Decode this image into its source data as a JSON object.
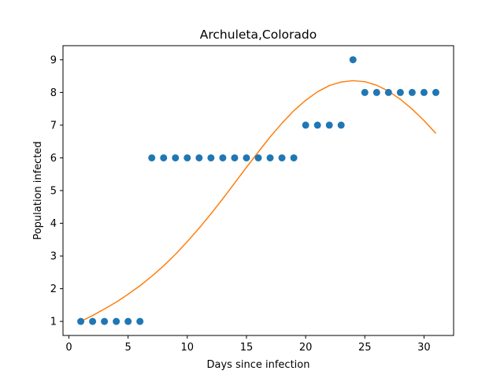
{
  "chart_data": {
    "type": "scatter",
    "title": "Archuleta,Colorado",
    "xlabel": "Days since infection",
    "ylabel": "Population infected",
    "xlim": [
      -0.5,
      32.5
    ],
    "ylim": [
      0.57,
      9.43
    ],
    "xticks": [
      0,
      5,
      10,
      15,
      20,
      25,
      30
    ],
    "yticks": [
      1,
      2,
      3,
      4,
      5,
      6,
      7,
      8,
      9
    ],
    "grid": false,
    "series": [
      {
        "kind": "scatter",
        "color": "#1f77b4",
        "x": [
          1,
          2,
          3,
          4,
          5,
          6,
          7,
          8,
          9,
          10,
          11,
          12,
          13,
          14,
          15,
          16,
          17,
          18,
          19,
          20,
          21,
          22,
          23,
          24,
          25,
          26,
          27,
          28,
          29,
          30,
          31
        ],
        "y": [
          1,
          1,
          1,
          1,
          1,
          1,
          6,
          6,
          6,
          6,
          6,
          6,
          6,
          6,
          6,
          6,
          6,
          6,
          6,
          7,
          7,
          7,
          7,
          9,
          8,
          8,
          8,
          8,
          8,
          8,
          8
        ]
      },
      {
        "kind": "line",
        "color": "#ff7f0e",
        "x": [
          1,
          2,
          3,
          4,
          5,
          6,
          7,
          8,
          9,
          10,
          11,
          12,
          13,
          14,
          15,
          16,
          17,
          18,
          19,
          20,
          21,
          22,
          23,
          24,
          25,
          26,
          27,
          28,
          29,
          30,
          31
        ],
        "y": [
          1.0,
          1.18,
          1.38,
          1.59,
          1.83,
          2.09,
          2.38,
          2.7,
          3.05,
          3.44,
          3.85,
          4.29,
          4.75,
          5.23,
          5.71,
          6.18,
          6.64,
          7.06,
          7.44,
          7.76,
          8.02,
          8.21,
          8.32,
          8.36,
          8.33,
          8.22,
          8.04,
          7.79,
          7.49,
          7.14,
          6.75
        ]
      }
    ]
  }
}
